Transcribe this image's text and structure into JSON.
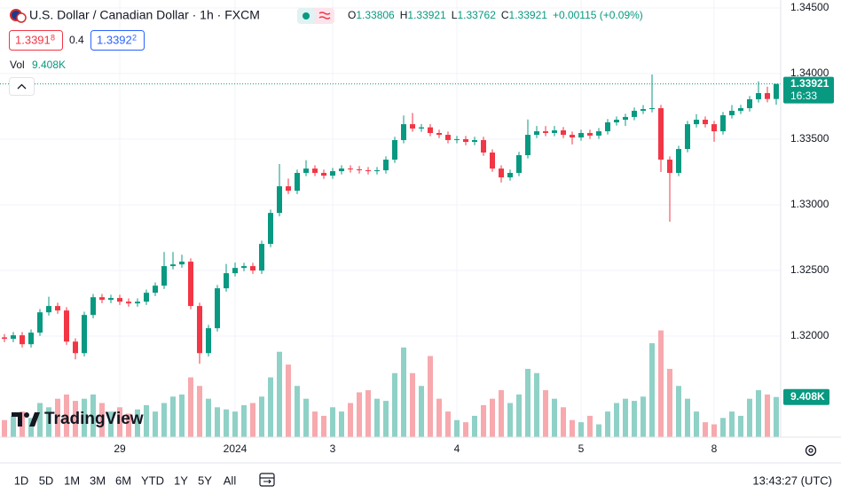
{
  "chart_data": {
    "type": "candlestick",
    "title": "U.S. Dollar / Canadian Dollar · 1h · FXCM",
    "ohlc": [
      {
        "label": "O",
        "value": "1.33806"
      },
      {
        "label": "H",
        "value": "1.33921"
      },
      {
        "label": "L",
        "value": "1.33762"
      },
      {
        "label": "C",
        "value": "1.33921"
      }
    ],
    "change": "+0.00115 (+0.09%)",
    "bid": {
      "price": "1.3391",
      "pip": "8"
    },
    "spread": "0.4",
    "ask": {
      "price": "1.3392",
      "pip": "2"
    },
    "volume_title": "Vol",
    "volume_label": "9.408K",
    "countdown": "16:33",
    "logo": "TradingView",
    "ranges": [
      "1D",
      "5D",
      "1M",
      "3M",
      "6M",
      "YTD",
      "1Y",
      "5Y",
      "All"
    ],
    "clock": "13:43:27 (UTC)",
    "up_color": "#089981",
    "down_color": "#f23645",
    "volume_up_color": "#8fd1c6",
    "volume_down_color": "#f7a9ae",
    "grid": true,
    "ylim": [
      1.3123,
      1.3456
    ],
    "yticks": [
      {
        "value": 1.345,
        "label": "1.34500"
      },
      {
        "value": 1.34,
        "label": "1.34000"
      },
      {
        "value": 1.335,
        "label": "1.33500"
      },
      {
        "value": 1.33,
        "label": "1.33000"
      },
      {
        "value": 1.325,
        "label": "1.32500"
      },
      {
        "value": 1.32,
        "label": "1.32000"
      }
    ],
    "volume_lim": [
      0,
      27000
    ],
    "categories": [
      null,
      null,
      null,
      null,
      null,
      null,
      null,
      null,
      null,
      null,
      null,
      null,
      null,
      "29",
      null,
      null,
      null,
      null,
      null,
      null,
      null,
      null,
      null,
      null,
      null,
      null,
      "2024",
      null,
      null,
      null,
      null,
      null,
      null,
      null,
      null,
      null,
      null,
      "3",
      null,
      null,
      null,
      null,
      null,
      null,
      null,
      null,
      null,
      null,
      null,
      null,
      null,
      "4",
      null,
      null,
      null,
      null,
      null,
      null,
      null,
      null,
      null,
      null,
      null,
      null,
      null,
      "5",
      null,
      null,
      null,
      null,
      null,
      null,
      null,
      null,
      null,
      null,
      null,
      null,
      null,
      null,
      "8",
      null,
      null,
      null,
      null,
      null,
      null,
      null
    ],
    "candles": [
      [
        1.3199,
        1.32015,
        1.31954,
        1.31979
      ],
      [
        1.31979,
        1.32031,
        1.31954,
        1.32006
      ],
      [
        1.32006,
        1.32031,
        1.31913,
        1.31938
      ],
      [
        1.31938,
        1.32051,
        1.31913,
        1.32026
      ],
      [
        1.32026,
        1.32206,
        1.32001,
        1.32181
      ],
      [
        1.32181,
        1.323,
        1.32156,
        1.32229
      ],
      [
        1.32229,
        1.32254,
        1.3217,
        1.32195
      ],
      [
        1.32195,
        1.3222,
        1.31933,
        1.31958
      ],
      [
        1.31958,
        1.31983,
        1.31823,
        1.3187
      ],
      [
        1.3187,
        1.32186,
        1.31845,
        1.32161
      ],
      [
        1.32161,
        1.32321,
        1.32136,
        1.32296
      ],
      [
        1.32296,
        1.32321,
        1.32251,
        1.32276
      ],
      [
        1.32276,
        1.32315,
        1.32251,
        1.3229
      ],
      [
        1.3229,
        1.32315,
        1.32237,
        1.32262
      ],
      [
        1.32262,
        1.32287,
        1.32224,
        1.32249
      ],
      [
        1.32249,
        1.32287,
        1.32224,
        1.32262
      ],
      [
        1.32262,
        1.32355,
        1.32237,
        1.3233
      ],
      [
        1.3233,
        1.32409,
        1.32305,
        1.32384
      ],
      [
        1.32384,
        1.3264,
        1.32359,
        1.32533
      ],
      [
        1.32533,
        1.3264,
        1.32508,
        1.32546
      ],
      [
        1.32546,
        1.3262,
        1.32521,
        1.32567
      ],
      [
        1.32567,
        1.32592,
        1.32204,
        1.32229
      ],
      [
        1.32229,
        1.32254,
        1.31789,
        1.3187
      ],
      [
        1.3187,
        1.32085,
        1.31845,
        1.3206
      ],
      [
        1.3206,
        1.32389,
        1.32035,
        1.32364
      ],
      [
        1.32364,
        1.3255,
        1.32339,
        1.32479
      ],
      [
        1.32479,
        1.3256,
        1.32454,
        1.32519
      ],
      [
        1.32519,
        1.32558,
        1.32494,
        1.32533
      ],
      [
        1.32533,
        1.32558,
        1.32474,
        1.32499
      ],
      [
        1.32499,
        1.32727,
        1.32474,
        1.32702
      ],
      [
        1.32702,
        1.32963,
        1.32677,
        1.32938
      ],
      [
        1.32938,
        1.3331,
        1.32913,
        1.33141
      ],
      [
        1.33141,
        1.332,
        1.33082,
        1.33107
      ],
      [
        1.33107,
        1.33268,
        1.33082,
        1.33243
      ],
      [
        1.33243,
        1.3334,
        1.33218,
        1.33276
      ],
      [
        1.33276,
        1.33301,
        1.33218,
        1.33243
      ],
      [
        1.33243,
        1.33268,
        1.33197,
        1.33222
      ],
      [
        1.33222,
        1.33281,
        1.33197,
        1.33256
      ],
      [
        1.33256,
        1.33301,
        1.33231,
        1.33276
      ],
      [
        1.33276,
        1.33301,
        1.33245,
        1.3327
      ],
      [
        1.3327,
        1.33295,
        1.33238,
        1.33263
      ],
      [
        1.33263,
        1.33288,
        1.33231,
        1.33256
      ],
      [
        1.33256,
        1.33288,
        1.33231,
        1.33263
      ],
      [
        1.33263,
        1.33369,
        1.33238,
        1.33344
      ],
      [
        1.33344,
        1.33518,
        1.33319,
        1.33493
      ],
      [
        1.33493,
        1.3368,
        1.33468,
        1.33614
      ],
      [
        1.33614,
        1.337,
        1.33556,
        1.33581
      ],
      [
        1.33581,
        1.33615,
        1.33556,
        1.3359
      ],
      [
        1.3359,
        1.33615,
        1.33522,
        1.33547
      ],
      [
        1.33547,
        1.33572,
        1.33508,
        1.33533
      ],
      [
        1.33533,
        1.33558,
        1.33468,
        1.33493
      ],
      [
        1.33493,
        1.33525,
        1.33468,
        1.335
      ],
      [
        1.335,
        1.33525,
        1.33454,
        1.33479
      ],
      [
        1.33479,
        1.33518,
        1.33454,
        1.33493
      ],
      [
        1.33493,
        1.33518,
        1.33373,
        1.33398
      ],
      [
        1.33398,
        1.33423,
        1.33251,
        1.33276
      ],
      [
        1.33276,
        1.33301,
        1.3317,
        1.33209
      ],
      [
        1.33209,
        1.33268,
        1.33184,
        1.33243
      ],
      [
        1.33243,
        1.33403,
        1.33218,
        1.33378
      ],
      [
        1.33378,
        1.3365,
        1.33353,
        1.33533
      ],
      [
        1.33533,
        1.336,
        1.33508,
        1.3356
      ],
      [
        1.3356,
        1.336,
        1.33522,
        1.33547
      ],
      [
        1.33547,
        1.336,
        1.33522,
        1.33567
      ],
      [
        1.33567,
        1.33592,
        1.33508,
        1.33533
      ],
      [
        1.33533,
        1.33558,
        1.3346,
        1.33513
      ],
      [
        1.33513,
        1.33572,
        1.33488,
        1.33547
      ],
      [
        1.33547,
        1.33572,
        1.33502,
        1.33527
      ],
      [
        1.33527,
        1.33585,
        1.33502,
        1.3356
      ],
      [
        1.3356,
        1.33653,
        1.33535,
        1.33628
      ],
      [
        1.33628,
        1.33673,
        1.33603,
        1.33648
      ],
      [
        1.33648,
        1.33694,
        1.336,
        1.33669
      ],
      [
        1.33669,
        1.33741,
        1.33644,
        1.33716
      ],
      [
        1.33716,
        1.3376,
        1.33691,
        1.33729
      ],
      [
        1.33729,
        1.33993,
        1.33704,
        1.33736
      ],
      [
        1.33736,
        1.33761,
        1.3325,
        1.33344
      ],
      [
        1.33344,
        1.33369,
        1.32871,
        1.33243
      ],
      [
        1.33243,
        1.3345,
        1.33218,
        1.33425
      ],
      [
        1.33425,
        1.33639,
        1.334,
        1.33614
      ],
      [
        1.33614,
        1.3369,
        1.33589,
        1.33648
      ],
      [
        1.33648,
        1.33673,
        1.33589,
        1.33614
      ],
      [
        1.33614,
        1.33639,
        1.3348,
        1.3356
      ],
      [
        1.3356,
        1.33707,
        1.33535,
        1.33682
      ],
      [
        1.33682,
        1.3376,
        1.33657,
        1.33716
      ],
      [
        1.33716,
        1.33761,
        1.33691,
        1.33736
      ],
      [
        1.33736,
        1.33829,
        1.33711,
        1.33804
      ],
      [
        1.33804,
        1.3394,
        1.33779,
        1.33851
      ],
      [
        1.33851,
        1.339,
        1.33781,
        1.33806
      ],
      [
        1.33806,
        1.33921,
        1.33762,
        1.33921
      ]
    ],
    "volumes": [
      4000,
      5000,
      6000,
      4500,
      8000,
      7000,
      9000,
      10000,
      8500,
      9000,
      10000,
      8000,
      6000,
      7000,
      5500,
      6500,
      7500,
      6000,
      8000,
      9500,
      10000,
      14000,
      12000,
      9000,
      7000,
      6500,
      6000,
      7500,
      8000,
      9500,
      14000,
      20000,
      17000,
      12000,
      9000,
      6000,
      5000,
      7000,
      6000,
      8000,
      10500,
      11000,
      9000,
      8500,
      15000,
      21000,
      15000,
      12000,
      19000,
      9000,
      6000,
      4000,
      3500,
      5000,
      7500,
      9000,
      11000,
      8000,
      10000,
      16000,
      15000,
      11000,
      9000,
      7000,
      4000,
      3500,
      5000,
      3000,
      6000,
      8000,
      9000,
      8500,
      9500,
      22000,
      25000,
      16000,
      12000,
      9000,
      6000,
      3500,
      3000,
      4500,
      6000,
      5000,
      9000,
      11000,
      10000,
      9408
    ]
  }
}
